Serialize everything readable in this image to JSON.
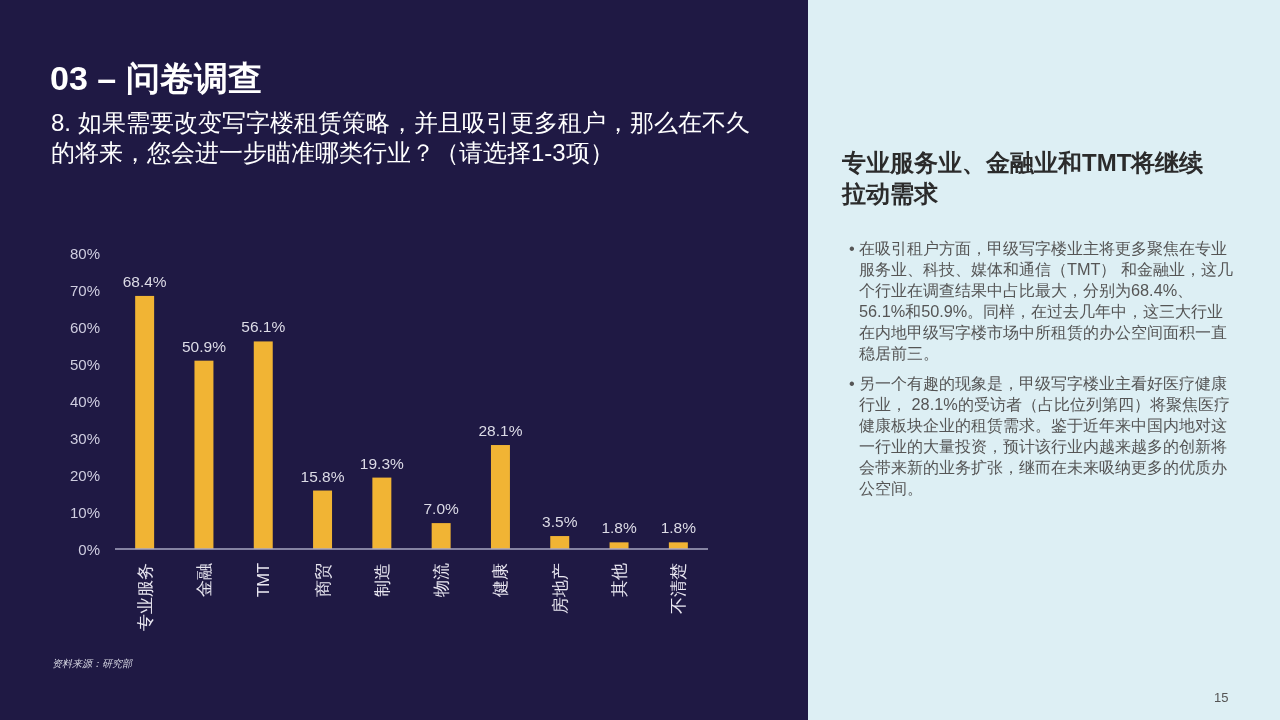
{
  "chart_data": [
    {
      "type": "bar",
      "title": "03 – 问卷调查",
      "subtitle": "8. 如果需要改变写字楼租赁策略，并且吸引更多租户，那么在不久的将来，您会进一步瞄准哪类行业？（请选择1-3项）",
      "categories": [
        "专业服务",
        "金融",
        "TMT",
        "商贸",
        "制造",
        "物流",
        "健康",
        "房地产",
        "其他",
        "不清楚"
      ],
      "values": [
        68.4,
        50.9,
        56.1,
        15.8,
        19.3,
        7.0,
        28.1,
        3.5,
        1.8,
        1.8
      ],
      "value_labels": [
        "68.4%",
        "50.9%",
        "56.1%",
        "15.8%",
        "19.3%",
        "7.0%",
        "28.1%",
        "3.5%",
        "1.8%",
        "1.8%"
      ],
      "color": "#f1b434",
      "ylim": [
        0,
        80
      ],
      "yticks": [
        {
          "value": 0,
          "label": "0%"
        },
        {
          "value": 10,
          "label": "10%"
        },
        {
          "value": 20,
          "label": "20%"
        },
        {
          "value": 30,
          "label": "30%"
        },
        {
          "value": 40,
          "label": "40%"
        },
        {
          "value": 50,
          "label": "50%"
        },
        {
          "value": 60,
          "label": "60%"
        },
        {
          "value": 70,
          "label": "70%"
        },
        {
          "value": 80,
          "label": "80%"
        }
      ],
      "annotations": [
        "资料来源：研究部"
      ]
    },
    {
      "type": "other",
      "title": "专业服务业、金融业和TMT将继续拉动需求",
      "annotations": [
        "• 在吸引租户方面，甲级写字楼业主将更多聚焦在专业服务业、科技、媒体和通信（TMT） 和金融业，这几个行业在调查结果中占比最大，分别为68.4%、56.1%和50.9%。同样，在过去几年中，这三大行业在内地甲级写字楼市场中所租赁的办公空间面积一直稳居前三。",
        "• 另一个有趣的现象是，甲级写字楼业主看好医疗健康行业， 28.1%的受访者（占比位列第四）将聚焦医疗健康板块企业的租赁需求。鉴于近年来中国内地对这一行业的大量投资，预计该行业内越来越多的创新将会带来新的业务扩张，继而在未来吸纳更多的优质办公空间。",
        "15"
      ]
    }
  ]
}
